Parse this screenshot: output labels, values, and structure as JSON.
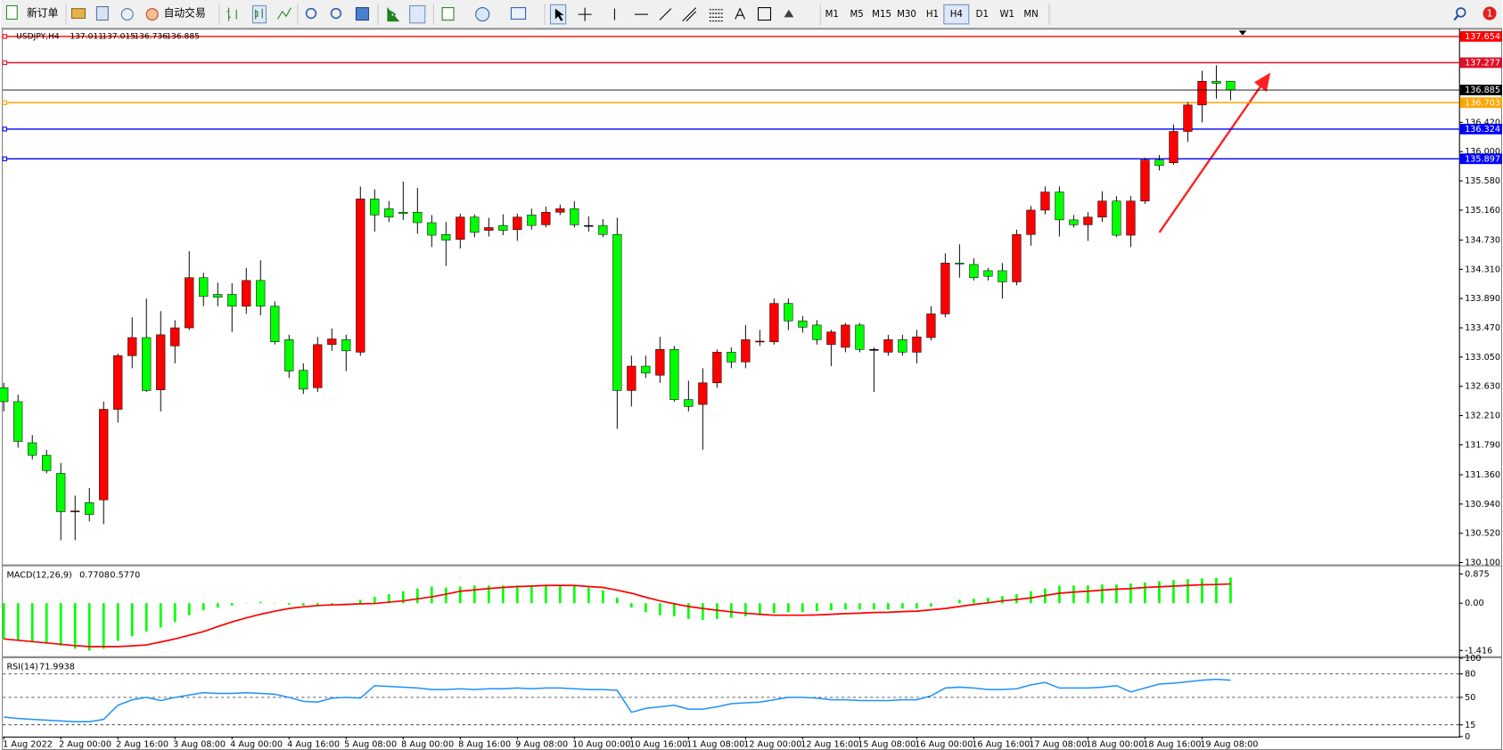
{
  "toolbar": {
    "new_order": "新订单",
    "auto_trading": "自动交易",
    "timeframes": [
      "M1",
      "M5",
      "M15",
      "M30",
      "H1",
      "H4",
      "D1",
      "W1",
      "MN"
    ],
    "notifications": "1"
  },
  "chart_data": [
    {
      "type": "candlestick",
      "title": "USDJPY,H4",
      "up_color": "#ff0000",
      "down_color": "#00ff00",
      "wick_color": "#000000",
      "current_color": "#000000",
      "categories": [
        "1 Aug 2022",
        null,
        null,
        null,
        "2 Aug 00:00",
        null,
        null,
        null,
        "2 Aug 16:00",
        null,
        null,
        null,
        "3 Aug 08:00",
        null,
        null,
        null,
        "4 Aug 00:00",
        null,
        null,
        null,
        "4 Aug 16:00",
        null,
        null,
        null,
        "5 Aug 08:00",
        null,
        null,
        null,
        "8 Aug 00:00",
        null,
        null,
        null,
        "8 Aug 16:00",
        null,
        null,
        null,
        "9 Aug 08:00",
        null,
        null,
        null,
        "10 Aug 00:00",
        null,
        null,
        null,
        "10 Aug 16:00",
        null,
        null,
        null,
        "11 Aug 08:00",
        null,
        null,
        null,
        "12 Aug 00:00",
        null,
        null,
        null,
        "12 Aug 16:00",
        null,
        null,
        null,
        "15 Aug 08:00",
        null,
        null,
        null,
        "16 Aug 00:00",
        null,
        null,
        null,
        "16 Aug 16:00",
        null,
        null,
        null,
        "17 Aug 08:00",
        null,
        null,
        null,
        "18 Aug 00:00",
        null,
        null,
        null,
        "18 Aug 16:00",
        null,
        null,
        null,
        "19 Aug 08:00",
        null,
        null
      ],
      "open": [
        132.61,
        132.41,
        131.82,
        131.64,
        131.38,
        130.83,
        130.96,
        131.0,
        132.3,
        133.07,
        133.33,
        132.58,
        133.21,
        133.47,
        134.19,
        133.95,
        133.95,
        133.78,
        134.15,
        133.78,
        133.3,
        132.86,
        132.61,
        133.23,
        133.3,
        133.12,
        135.32,
        135.18,
        135.13,
        135.13,
        134.98,
        134.81,
        134.74,
        135.06,
        134.87,
        134.94,
        134.88,
        135.09,
        134.95,
        135.13,
        135.18,
        134.94,
        134.94,
        134.81,
        132.57,
        132.92,
        132.79,
        133.16,
        132.44,
        132.37,
        132.68,
        133.12,
        132.98,
        133.27,
        133.27,
        133.82,
        133.57,
        133.51,
        133.23,
        133.19,
        133.51,
        133.16,
        133.12,
        133.3,
        133.12,
        133.33,
        133.67,
        134.4,
        134.38,
        134.29,
        134.29,
        134.13,
        134.81,
        135.16,
        135.42,
        135.02,
        134.95,
        135.06,
        135.29,
        134.8,
        135.29,
        135.88,
        135.84,
        136.29,
        136.67,
        137.01,
        137.011
      ],
      "high": [
        132.68,
        132.51,
        131.93,
        131.72,
        131.53,
        131.06,
        131.17,
        132.41,
        133.1,
        133.62,
        133.89,
        133.71,
        133.58,
        134.57,
        134.26,
        134.12,
        134.11,
        134.33,
        134.44,
        133.85,
        133.37,
        132.96,
        133.34,
        133.46,
        133.37,
        135.5,
        135.46,
        135.29,
        135.57,
        135.48,
        135.09,
        134.99,
        135.11,
        135.1,
        135.05,
        135.1,
        135.11,
        135.18,
        135.21,
        135.24,
        135.29,
        135.07,
        135.03,
        135.05,
        133.07,
        133.07,
        133.34,
        133.21,
        132.71,
        132.89,
        133.16,
        133.19,
        133.51,
        133.44,
        133.89,
        133.89,
        133.64,
        133.58,
        133.44,
        133.54,
        133.54,
        133.19,
        133.37,
        133.37,
        133.44,
        133.78,
        134.54,
        134.67,
        134.47,
        134.33,
        134.4,
        134.88,
        135.22,
        135.5,
        135.5,
        135.09,
        135.13,
        135.43,
        135.36,
        135.36,
        135.91,
        135.95,
        136.39,
        136.71,
        137.16,
        137.24,
        137.015
      ],
      "low": [
        132.27,
        131.75,
        131.58,
        131.38,
        130.42,
        130.42,
        130.69,
        130.65,
        132.11,
        132.89,
        132.55,
        132.27,
        132.96,
        133.44,
        133.78,
        133.78,
        133.41,
        133.67,
        133.65,
        133.23,
        132.75,
        132.52,
        132.55,
        133.14,
        132.85,
        133.07,
        134.85,
        134.99,
        135.02,
        134.82,
        134.63,
        134.36,
        134.61,
        134.77,
        134.78,
        134.8,
        134.72,
        134.88,
        134.91,
        135.09,
        134.91,
        134.85,
        134.77,
        132.02,
        132.34,
        132.75,
        132.68,
        132.41,
        132.27,
        131.72,
        132.61,
        132.89,
        132.89,
        133.21,
        133.23,
        133.44,
        133.4,
        133.23,
        132.92,
        133.12,
        133.12,
        132.55,
        133.07,
        133.07,
        132.96,
        133.29,
        133.62,
        134.19,
        134.15,
        134.15,
        133.89,
        134.08,
        134.65,
        135.1,
        134.78,
        134.91,
        134.72,
        134.99,
        134.77,
        134.63,
        135.25,
        135.73,
        135.81,
        136.14,
        136.42,
        136.76,
        136.736
      ],
      "close": [
        132.41,
        131.84,
        131.64,
        131.42,
        130.83,
        130.84,
        130.79,
        132.3,
        133.07,
        133.33,
        132.57,
        133.37,
        133.47,
        134.19,
        133.92,
        133.91,
        133.78,
        134.15,
        133.78,
        133.27,
        132.85,
        132.59,
        133.23,
        133.31,
        133.14,
        135.32,
        135.09,
        135.06,
        135.11,
        134.98,
        134.8,
        134.73,
        135.06,
        134.84,
        134.91,
        134.87,
        135.06,
        134.94,
        135.13,
        135.18,
        134.95,
        134.94,
        134.81,
        132.57,
        132.92,
        132.82,
        133.16,
        132.44,
        132.34,
        132.68,
        133.12,
        132.98,
        133.3,
        133.28,
        133.82,
        133.57,
        133.48,
        133.3,
        133.41,
        133.51,
        133.16,
        133.16,
        133.3,
        133.12,
        133.34,
        133.67,
        134.4,
        134.39,
        134.19,
        134.21,
        134.13,
        134.81,
        135.16,
        135.42,
        135.02,
        134.95,
        135.06,
        135.29,
        134.8,
        135.29,
        135.88,
        135.8,
        136.29,
        136.67,
        137.01,
        136.98,
        136.885
      ],
      "ylim": [
        130.073,
        137.765
      ],
      "yticks": [
        {
          "value": 136.42,
          "label": "136.420"
        },
        {
          "value": 136.0,
          "label": "136.000"
        },
        {
          "value": 135.58,
          "label": "135.580"
        },
        {
          "value": 135.16,
          "label": "135.160"
        },
        {
          "value": 134.73,
          "label": "134.730"
        },
        {
          "value": 134.31,
          "label": "134.310"
        },
        {
          "value": 133.89,
          "label": "133.890"
        },
        {
          "value": 133.47,
          "label": "133.470"
        },
        {
          "value": 133.05,
          "label": "133.050"
        },
        {
          "value": 132.63,
          "label": "132.630"
        },
        {
          "value": 132.21,
          "label": "132.210"
        },
        {
          "value": 131.79,
          "label": "131.790"
        },
        {
          "value": 131.36,
          "label": "131.360"
        },
        {
          "value": 130.94,
          "label": "130.940"
        },
        {
          "value": 130.52,
          "label": "130.520"
        },
        {
          "value": 130.1,
          "label": "130.100"
        }
      ],
      "levels": [
        {
          "value": 137.654,
          "color": "#ff0000"
        },
        {
          "value": 137.277,
          "color": "#e0102a"
        },
        {
          "value": 136.703,
          "color": "#ffa500"
        },
        {
          "value": 136.324,
          "color": "#0000ff"
        },
        {
          "value": 135.897,
          "color": "#0000ff"
        }
      ]
    },
    {
      "type": "macd",
      "title": "MACD(12,26,9)",
      "histogram": {
        "color": "#00ff00",
        "values": [
          -1.07,
          -1.1,
          -1.13,
          -1.19,
          -1.27,
          -1.36,
          -1.42,
          -1.36,
          -1.13,
          -0.99,
          -0.85,
          -0.73,
          -0.56,
          -0.36,
          -0.21,
          -0.13,
          -0.07,
          0.01,
          0.04,
          0.01,
          -0.04,
          -0.07,
          -0.07,
          -0.04,
          -0.01,
          0.1,
          0.19,
          0.27,
          0.36,
          0.44,
          0.5,
          0.47,
          0.5,
          0.53,
          0.53,
          0.53,
          0.53,
          0.53,
          0.53,
          0.53,
          0.53,
          0.47,
          0.39,
          0.16,
          -0.13,
          -0.27,
          -0.36,
          -0.39,
          -0.47,
          -0.5,
          -0.47,
          -0.44,
          -0.39,
          -0.36,
          -0.3,
          -0.27,
          -0.27,
          -0.24,
          -0.21,
          -0.19,
          -0.19,
          -0.19,
          -0.19,
          -0.16,
          -0.16,
          -0.1,
          0.01,
          0.1,
          0.13,
          0.16,
          0.21,
          0.27,
          0.36,
          0.44,
          0.53,
          0.53,
          0.53,
          0.56,
          0.56,
          0.59,
          0.62,
          0.66,
          0.69,
          0.72,
          0.74,
          0.76,
          0.7708
        ]
      },
      "signal": {
        "color": "#ff0000",
        "values": [
          -1.07,
          -1.11,
          -1.15,
          -1.19,
          -1.23,
          -1.27,
          -1.3,
          -1.3,
          -1.3,
          -1.28,
          -1.25,
          -1.16,
          -1.07,
          -0.96,
          -0.85,
          -0.7,
          -0.56,
          -0.44,
          -0.33,
          -0.24,
          -0.16,
          -0.11,
          -0.07,
          -0.05,
          -0.04,
          -0.02,
          -0.01,
          0.03,
          0.07,
          0.13,
          0.19,
          0.27,
          0.36,
          0.4,
          0.44,
          0.47,
          0.5,
          0.51,
          0.53,
          0.53,
          0.53,
          0.5,
          0.47,
          0.39,
          0.3,
          0.18,
          0.07,
          -0.02,
          -0.1,
          -0.16,
          -0.21,
          -0.26,
          -0.3,
          -0.33,
          -0.36,
          -0.36,
          -0.36,
          -0.35,
          -0.33,
          -0.31,
          -0.3,
          -0.28,
          -0.27,
          -0.25,
          -0.24,
          -0.2,
          -0.16,
          -0.1,
          -0.04,
          0.01,
          0.07,
          0.11,
          0.16,
          0.23,
          0.3,
          0.33,
          0.36,
          0.39,
          0.42,
          0.44,
          0.47,
          0.49,
          0.51,
          0.53,
          0.55,
          0.56,
          0.577
        ],
        "value_labels": [
          null,
          null,
          null,
          null,
          null,
          null,
          null,
          null,
          null,
          null,
          null,
          null,
          null,
          null,
          null,
          null,
          null,
          null,
          null,
          null,
          null,
          null,
          null,
          null,
          null,
          null,
          null,
          null,
          null,
          null,
          null,
          null,
          null,
          null,
          null,
          null,
          null,
          null,
          null,
          null,
          null,
          null,
          null,
          null,
          null,
          null,
          null,
          null,
          null,
          null,
          null,
          null,
          null,
          null,
          null,
          null,
          null,
          null,
          null,
          null,
          null,
          null,
          null,
          null,
          null,
          null,
          null,
          null,
          null,
          null,
          null,
          null,
          null,
          null,
          null,
          null,
          null,
          null,
          null,
          null,
          null,
          null,
          null,
          null,
          null,
          null,
          "0.5770"
        ]
      },
      "ylim": [
        -1.588,
        1.104
      ],
      "yticks": [
        0.875,
        {
          "value": 0,
          "label": "0.00"
        },
        -1.416
      ]
    },
    {
      "type": "line",
      "title": "RSI(14)",
      "color": "#1e90ff",
      "grid": "dashed",
      "values": [
        25,
        23,
        22,
        21,
        20,
        19,
        19,
        22,
        40,
        47,
        50,
        46,
        50,
        53,
        56,
        55,
        55,
        56,
        55,
        54,
        50,
        45,
        44,
        49,
        50,
        49,
        65,
        64,
        63,
        62,
        60,
        60,
        61,
        60,
        61,
        61,
        62,
        61,
        62,
        62,
        61,
        60,
        60,
        59,
        31,
        36,
        38,
        40,
        35,
        35,
        38,
        42,
        43,
        44,
        47,
        50,
        50,
        49,
        47,
        47,
        46,
        46,
        46,
        47,
        47,
        52,
        62,
        63,
        62,
        60,
        60,
        61,
        66,
        69,
        62,
        62,
        62,
        63,
        65,
        57,
        62,
        67,
        68,
        70,
        72,
        73,
        71.9938
      ],
      "ylim": [
        0,
        100
      ],
      "yticks": [
        100,
        80,
        50,
        15,
        0
      ]
    }
  ]
}
